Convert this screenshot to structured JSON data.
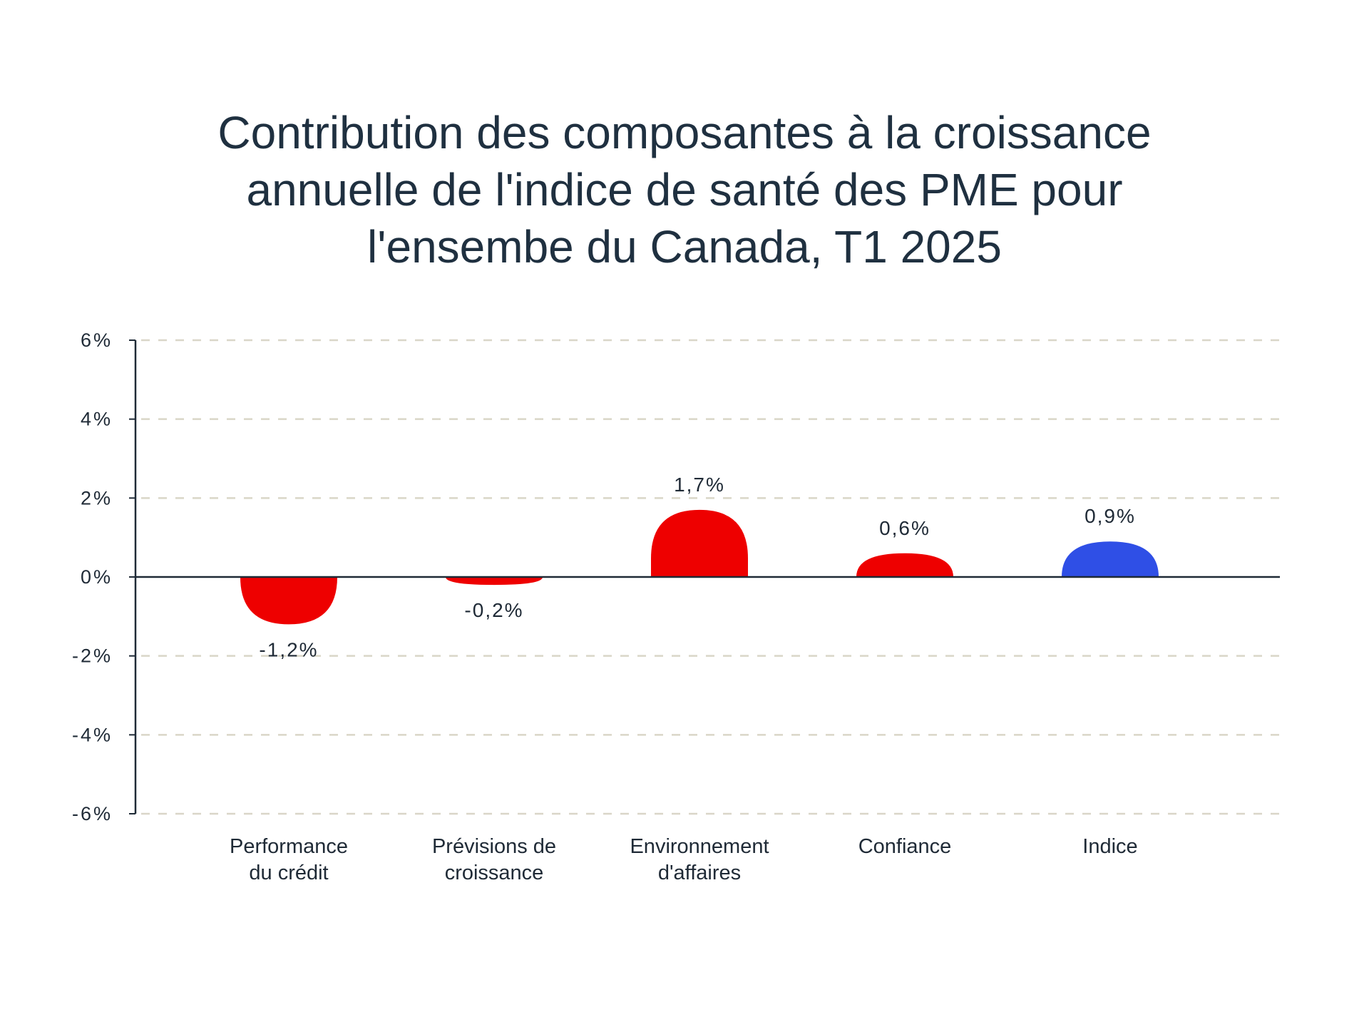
{
  "title_lines": [
    "Contribution des composantes à la croissance",
    "annuelle de l'indice de santé des PME pour",
    "l'ensembe du Canada, T1 2025"
  ],
  "colors": {
    "negative_component": "#ee0000",
    "positive_component": "#ee0000",
    "index": "#2f4fe6",
    "axis": "#1f2a36",
    "grid": "#d9d6c8",
    "text": "#1f2a36"
  },
  "chart_data": {
    "type": "bar",
    "title": "Contribution des composantes à la croissance annuelle de l'indice de santé des PME pour l'ensembe du Canada, T1 2025",
    "xlabel": "",
    "ylabel": "",
    "ylim": [
      -6,
      6
    ],
    "yticks": [
      6,
      4,
      2,
      0,
      -2,
      -4,
      -6
    ],
    "ytick_labels": [
      "6%",
      "4%",
      "2%",
      "0%",
      "-2%",
      "-4%",
      "-6%"
    ],
    "grid": true,
    "legend": "none",
    "categories": [
      [
        "Performance",
        "du crédit"
      ],
      [
        "Prévisions de",
        "croissance"
      ],
      [
        "Environnement",
        "d'affaires"
      ],
      [
        "Confiance"
      ],
      [
        "Indice"
      ]
    ],
    "values": [
      -1.2,
      -0.2,
      1.7,
      0.6,
      0.9
    ],
    "value_labels": [
      "-1,2%",
      "-0,2%",
      "1,7%",
      "0,6%",
      "0,9%"
    ],
    "bar_colors": [
      "#ee0000",
      "#ee0000",
      "#ee0000",
      "#ee0000",
      "#2f4fe6"
    ]
  }
}
